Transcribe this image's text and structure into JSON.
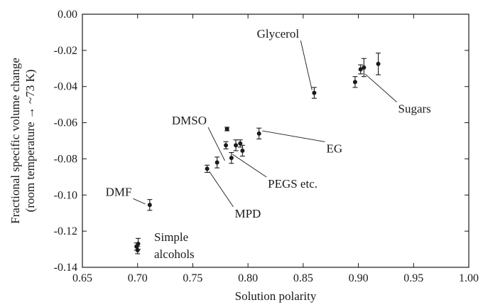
{
  "chart_data": {
    "type": "scatter",
    "title": "",
    "xlabel": "Solution polarity",
    "ylabel_lines": [
      "Fractional specific volume change",
      "(room temperature → ~73 K)"
    ],
    "xlim": [
      0.65,
      1.0
    ],
    "ylim": [
      -0.14,
      0.0
    ],
    "x_ticks": [
      0.65,
      0.7,
      0.75,
      0.8,
      0.85,
      0.9,
      0.95,
      1.0
    ],
    "x_tick_labels": [
      "0.65",
      "0.70",
      "0.75",
      "0.80",
      "0.85",
      "0.90",
      "0.95",
      "1.00"
    ],
    "y_ticks": [
      0.0,
      -0.02,
      -0.04,
      -0.06,
      -0.08,
      -0.1,
      -0.12,
      -0.14
    ],
    "y_tick_labels": [
      "0.00",
      "-0.02",
      "-0.04",
      "-0.06",
      "-0.08",
      "-0.10",
      "-0.12",
      "-0.14"
    ],
    "grid": false,
    "points": [
      {
        "x": 0.699,
        "y": -0.1285,
        "err": 0.002
      },
      {
        "x": 0.7,
        "y": -0.1305,
        "err": 0.002
      },
      {
        "x": 0.7005,
        "y": -0.127,
        "err": 0.003
      },
      {
        "x": 0.711,
        "y": -0.1055,
        "err": 0.003
      },
      {
        "x": 0.763,
        "y": -0.0855,
        "err": 0.002
      },
      {
        "x": 0.772,
        "y": -0.082,
        "err": 0.003
      },
      {
        "x": 0.78,
        "y": -0.0725,
        "err": 0.002
      },
      {
        "x": 0.781,
        "y": -0.0635,
        "err": 0.001
      },
      {
        "x": 0.785,
        "y": -0.0795,
        "err": 0.003
      },
      {
        "x": 0.789,
        "y": -0.0725,
        "err": 0.003
      },
      {
        "x": 0.793,
        "y": -0.0715,
        "err": 0.002
      },
      {
        "x": 0.795,
        "y": -0.0755,
        "err": 0.003
      },
      {
        "x": 0.81,
        "y": -0.066,
        "err": 0.003
      },
      {
        "x": 0.86,
        "y": -0.0435,
        "err": 0.003
      },
      {
        "x": 0.897,
        "y": -0.0375,
        "err": 0.003
      },
      {
        "x": 0.902,
        "y": -0.0305,
        "err": 0.0025
      },
      {
        "x": 0.905,
        "y": -0.0295,
        "err": 0.005
      },
      {
        "x": 0.918,
        "y": -0.0275,
        "err": 0.006
      }
    ],
    "annotations": [
      {
        "label": "Glycerol",
        "text_x": 0.808,
        "text_y": -0.011,
        "pt_x": 0.858,
        "pt_y": -0.042
      },
      {
        "label": "Sugars",
        "text_x": 0.936,
        "text_y": -0.0525,
        "pt_x": 0.906,
        "pt_y": -0.033
      },
      {
        "label": "DMSO",
        "text_x": 0.731,
        "text_y": -0.059,
        "pt_x": 0.779,
        "pt_y": -0.081
      },
      {
        "label": "EG",
        "text_x": 0.871,
        "text_y": -0.0745,
        "pt_x": 0.813,
        "pt_y": -0.0645
      },
      {
        "label": "PEGS etc.",
        "text_x": 0.818,
        "text_y": -0.094,
        "pt_x": 0.786,
        "pt_y": -0.0775
      },
      {
        "label": "DMF",
        "text_x": 0.671,
        "text_y": -0.0985,
        "pt_x": 0.707,
        "pt_y": -0.105
      },
      {
        "label": "MPD",
        "text_x": 0.788,
        "text_y": -0.1105,
        "pt_x": 0.765,
        "pt_y": -0.087
      },
      {
        "label": "Simple",
        "text_x": 0.715,
        "text_y": -0.1235,
        "pt_x": null,
        "pt_y": null
      },
      {
        "label": "alcohols",
        "text_x": 0.715,
        "text_y": -0.133,
        "pt_x": null,
        "pt_y": null
      }
    ]
  }
}
